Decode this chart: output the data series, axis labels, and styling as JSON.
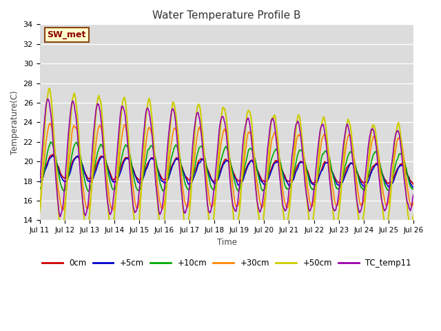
{
  "title": "Water Temperature Profile B",
  "xlabel": "Time",
  "ylabel": "Temperature(C)",
  "ylim": [
    14,
    34
  ],
  "annotation_text": "SW_met",
  "annotation_color": "#8B0000",
  "annotation_bg": "#FFFFCC",
  "annotation_border": "#8B4513",
  "series_colors": {
    "0cm": "#CC0000",
    "+5cm": "#0000CC",
    "+10cm": "#00AA00",
    "+30cm": "#FF8800",
    "+50cm": "#CCCC00",
    "TC_temp11": "#9900AA"
  },
  "tick_labels": [
    "Jul 11",
    "Jul 12",
    "Jul 13",
    "Jul 14",
    "Jul 15",
    "Jul 16",
    "Jul 17",
    "Jul 18",
    "Jul 19",
    "Jul 20",
    "Jul 21",
    "Jul 22",
    "Jul 23",
    "Jul 24",
    "Jul 25",
    "Jul 26"
  ],
  "yticks": [
    14,
    16,
    18,
    20,
    22,
    24,
    26,
    28,
    30,
    32,
    34
  ]
}
